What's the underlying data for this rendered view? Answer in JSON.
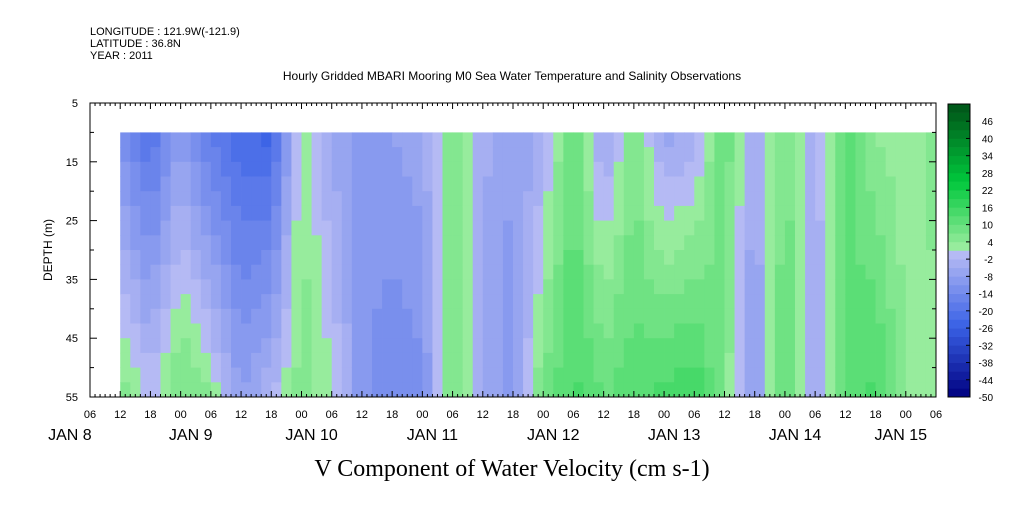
{
  "header": {
    "longitude": "LONGITUDE : 121.9W(-121.9)",
    "latitude": "LATITUDE : 36.8N",
    "year": "YEAR : 2011",
    "title": "Hourly Gridded MBARI Mooring M0 Sea Water Temperature and Salinity Observations"
  },
  "chart_data": {
    "type": "heatmap",
    "title": "Hourly Gridded MBARI Mooring M0 Sea Water Temperature and Salinity Observations",
    "xlabel": "V Component of Water Velocity (cm s-1)",
    "ylabel": "DEPTH (m)",
    "x_unit": "hours since JAN 8 00:00, 2011",
    "xlim": [
      6,
      174
    ],
    "data_start_hour": 12,
    "ylim": [
      5,
      55
    ],
    "y_inverted": true,
    "data_depth_range": [
      10,
      55
    ],
    "y_ticks": [
      5,
      15,
      25,
      35,
      45,
      55
    ],
    "x_hour_tick_labels": [
      "06",
      "12",
      "18",
      "00",
      "06",
      "12",
      "18",
      "00",
      "06",
      "12",
      "18",
      "00",
      "06",
      "12",
      "18",
      "00",
      "06",
      "12",
      "18",
      "00",
      "06",
      "12",
      "18",
      "00",
      "06",
      "12",
      "18",
      "00",
      "06"
    ],
    "day_labels": [
      "JAN  8",
      "JAN  9",
      "JAN 10",
      "JAN 11",
      "JAN 12",
      "JAN 13",
      "JAN 14",
      "JAN 15"
    ],
    "colorbar_labels": [
      "46",
      "40",
      "34",
      "28",
      "22",
      "16",
      "10",
      "4",
      "-2",
      "-8",
      "-14",
      "-20",
      "-26",
      "-32",
      "-38",
      "-44",
      "-50"
    ],
    "color_range": [
      -50,
      52
    ],
    "color_step": 3,
    "grid": false,
    "legend": "right colorbar",
    "velocity_profile_by_6h": [
      {
        "hour": 12,
        "surface": -12,
        "bottom": 6
      },
      {
        "hour": 18,
        "surface": -20,
        "bottom": 0
      },
      {
        "hour": 24,
        "surface": -8,
        "bottom": 8
      },
      {
        "hour": 30,
        "surface": -18,
        "bottom": 4
      },
      {
        "hour": 36,
        "surface": -22,
        "bottom": -8
      },
      {
        "hour": 42,
        "surface": -24,
        "bottom": -2
      },
      {
        "hour": 48,
        "surface": 4,
        "bottom": 6
      },
      {
        "hour": 54,
        "surface": -6,
        "bottom": 2
      },
      {
        "hour": 60,
        "surface": -10,
        "bottom": -10
      },
      {
        "hour": 66,
        "surface": -8,
        "bottom": -14
      },
      {
        "hour": 72,
        "surface": -6,
        "bottom": -12
      },
      {
        "hour": 78,
        "surface": 6,
        "bottom": 8
      },
      {
        "hour": 84,
        "surface": -4,
        "bottom": -6
      },
      {
        "hour": 90,
        "surface": -8,
        "bottom": -10
      },
      {
        "hour": 96,
        "surface": -4,
        "bottom": 8
      },
      {
        "hour": 102,
        "surface": 10,
        "bottom": 14
      },
      {
        "hour": 108,
        "surface": -6,
        "bottom": 10
      },
      {
        "hour": 114,
        "surface": 6,
        "bottom": 12
      },
      {
        "hour": 120,
        "surface": -6,
        "bottom": 14
      },
      {
        "hour": 126,
        "surface": -4,
        "bottom": 16
      },
      {
        "hour": 132,
        "surface": 10,
        "bottom": 6
      },
      {
        "hour": 138,
        "surface": -6,
        "bottom": -10
      },
      {
        "hour": 144,
        "surface": 8,
        "bottom": 12
      },
      {
        "hour": 150,
        "surface": -4,
        "bottom": -6
      },
      {
        "hour": 156,
        "surface": 12,
        "bottom": 10
      },
      {
        "hour": 162,
        "surface": 4,
        "bottom": 14
      },
      {
        "hour": 168,
        "surface": 2,
        "bottom": 4
      },
      {
        "hour": 174,
        "surface": 6,
        "bottom": 2
      }
    ]
  },
  "colors": {
    "neg_low": "#000080",
    "neg_mid": "#3a62e6",
    "neg_high": "#b8bcf4",
    "pos_low": "#a8f0a8",
    "pos_mid": "#00c83c",
    "pos_high": "#005a1a"
  }
}
